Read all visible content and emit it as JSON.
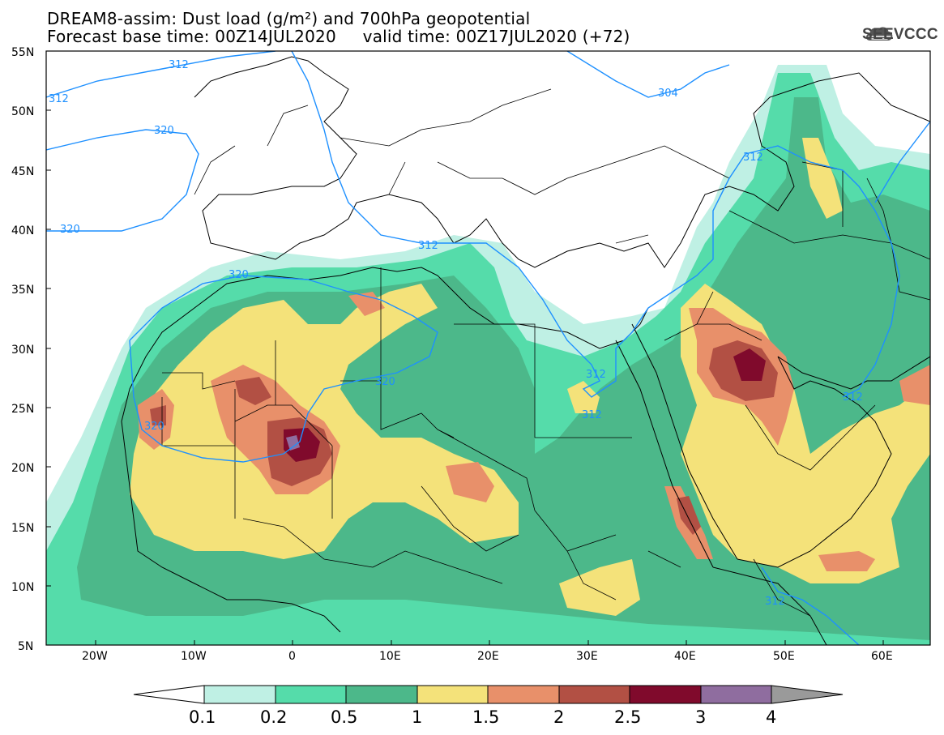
{
  "header": {
    "title_line1": "DREAM8-assim: Dust load (g/m²) and 700hPa geopotential",
    "title_line2": "Forecast base time: 00Z14JUL2020     valid time: 00Z17JUL2020 (+72)",
    "logo_text": "SEEVCCC",
    "logo_icon": "cloud-icon"
  },
  "axes": {
    "lat_labels": [
      "55N",
      "50N",
      "45N",
      "40N",
      "35N",
      "30N",
      "25N",
      "20N",
      "15N",
      "10N",
      "5N"
    ],
    "lon_labels": [
      "20W",
      "10W",
      "0",
      "10E",
      "20E",
      "30E",
      "40E",
      "50E",
      "60E"
    ]
  },
  "contour_labels": [
    "312",
    "312",
    "320",
    "320",
    "320",
    "312",
    "320",
    "312",
    "312",
    "312",
    "304",
    "312",
    "312",
    "312"
  ],
  "colorbar": {
    "levels": [
      "0.1",
      "0.2",
      "0.5",
      "1",
      "1.5",
      "2",
      "2.5",
      "3",
      "4"
    ],
    "colors": [
      "#bff0e4",
      "#55dcaa",
      "#4cb88a",
      "#f4e27a",
      "#e8906a",
      "#b25044",
      "#800a2c",
      "#8f6d9f",
      "#9a9a9a"
    ]
  },
  "palette": {
    "land_bg": "#ffffff",
    "contour": "#1e90ff",
    "borders": "#000000"
  }
}
